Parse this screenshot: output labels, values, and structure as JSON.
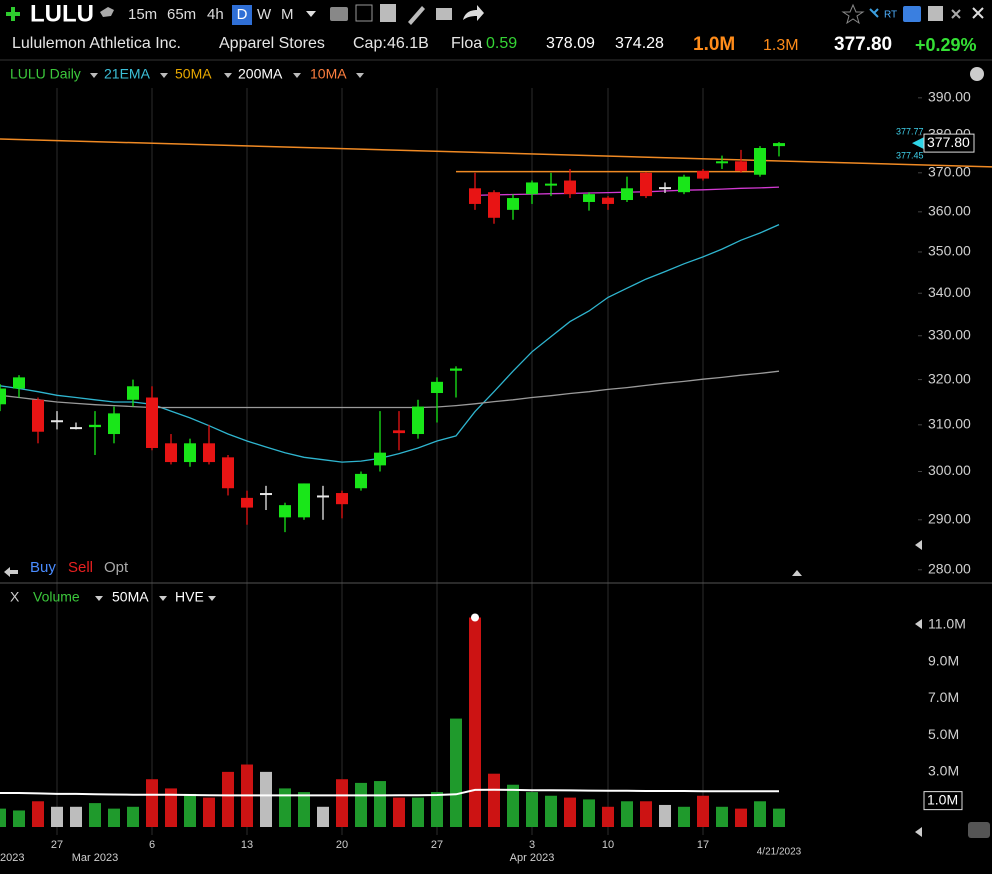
{
  "header": {
    "symbol": "LULU",
    "intervals": [
      "15m",
      "65m",
      "4h",
      "D",
      "W",
      "M"
    ],
    "rt": "RT",
    "company": "Lululemon Athletica Inc.",
    "industry": "Apparel Stores",
    "cap_label": "Cap:",
    "cap": "46.1B",
    "float_label": "Floa",
    "float": "0.59",
    "high": "378.09",
    "low": "374.28",
    "volume": "1.0M",
    "avg_volume": "1.3M",
    "last": "377.80",
    "change": "+0.29%"
  },
  "chart_data": [
    {
      "type": "candlestick",
      "title": "LULU Daily",
      "log_scale": true,
      "grid": "x",
      "up_color": "#19e619",
      "down_color": "#e81414",
      "flat_color": "#e8e8e8",
      "x": [
        "2023-02-22",
        "2023-02-23",
        "2023-02-24",
        "2023-02-27",
        "2023-02-28",
        "2023-03-01",
        "2023-03-02",
        "2023-03-03",
        "2023-03-06",
        "2023-03-07",
        "2023-03-08",
        "2023-03-09",
        "2023-03-10",
        "2023-03-13",
        "2023-03-14",
        "2023-03-15",
        "2023-03-16",
        "2023-03-17",
        "2023-03-20",
        "2023-03-21",
        "2023-03-22",
        "2023-03-23",
        "2023-03-24",
        "2023-03-27",
        "2023-03-28",
        "2023-03-29",
        "2023-03-30",
        "2023-03-31",
        "2023-04-03",
        "2023-04-04",
        "2023-04-05",
        "2023-04-06",
        "2023-04-10",
        "2023-04-11",
        "2023-04-12",
        "2023-04-13",
        "2023-04-14",
        "2023-04-17",
        "2023-04-18",
        "2023-04-19",
        "2023-04-20",
        "2023-04-21"
      ],
      "open": [
        314.5,
        318,
        315.5,
        311,
        309.5,
        309.5,
        308,
        315.5,
        316,
        306,
        302,
        306,
        303,
        294.5,
        295.5,
        290.5,
        290.5,
        295,
        295.5,
        296.5,
        301.3,
        308.8,
        308,
        317,
        322,
        366,
        365,
        360.5,
        364.5,
        366.8,
        368,
        362.5,
        363.6,
        363,
        370,
        366.3,
        365,
        370.5,
        372.5,
        373,
        369.5,
        377
      ],
      "high": [
        319,
        321,
        316,
        313,
        310.5,
        313,
        314,
        320,
        318.5,
        308,
        307,
        310,
        303.5,
        296,
        297,
        293.5,
        297.5,
        297,
        296,
        300,
        313,
        313,
        315.5,
        320.5,
        323,
        370,
        365.5,
        364.5,
        368,
        370,
        371,
        365,
        364,
        369,
        370.2,
        367.5,
        369.5,
        371,
        374.5,
        376,
        377,
        378.09
      ],
      "low": [
        313,
        316,
        306,
        309,
        309,
        303.5,
        306,
        314,
        304.5,
        301.5,
        301,
        301.5,
        295,
        289,
        292,
        287.5,
        290,
        290,
        290.3,
        296,
        300,
        304.5,
        307,
        310.5,
        316,
        360.5,
        357,
        358,
        362,
        364,
        363.5,
        360.3,
        360.5,
        362.5,
        363.5,
        364.8,
        364.5,
        368,
        371,
        370,
        369,
        374.28
      ],
      "close": [
        318,
        320.5,
        308.5,
        311,
        309.5,
        310,
        312.5,
        318.5,
        305,
        302,
        306,
        302,
        296.5,
        292.5,
        295.5,
        293,
        297.5,
        295,
        293.2,
        299.5,
        304,
        308.2,
        314,
        319.5,
        322.5,
        362,
        358.5,
        363.5,
        367.5,
        367.2,
        364.5,
        364.5,
        362,
        366,
        364,
        366.3,
        369,
        368.5,
        373,
        370.5,
        376.5,
        377.8
      ],
      "series": [
        {
          "name": "21EMA",
          "legend_color": "#3cc0d8",
          "color": "#2fb5cf",
          "values": [
            318.6,
            318,
            317.3,
            316.5,
            316,
            315.5,
            315,
            315,
            314.5,
            313,
            311.5,
            309.8,
            308,
            306.5,
            305.2,
            304,
            303,
            302.5,
            302,
            302.2,
            302.8,
            303.8,
            305,
            306.5,
            307.6,
            312.9,
            317.3,
            321.9,
            326.3,
            329.8,
            333.3,
            335.8,
            339,
            341.2,
            343.4,
            345.2,
            347.1,
            348.8,
            350.7,
            352.9,
            354.7,
            356.8
          ]
        },
        {
          "name": "50MA",
          "legend_color": "#e8a800",
          "color": "#e8a800"
        },
        {
          "name": "200MA",
          "legend_color": "#ffffff",
          "color": "#9a9a9a",
          "values": [
            316.5,
            316,
            315.5,
            315,
            314.7,
            314.4,
            314.2,
            314,
            313.8,
            313.8,
            313.8,
            313.8,
            313.8,
            313.8,
            313.8,
            313.8,
            313.8,
            313.8,
            313.8,
            313.8,
            313.8,
            313.8,
            313.8,
            313.9,
            314.2,
            314.6,
            315.1,
            315.5,
            316,
            316.4,
            316.9,
            317.3,
            317.8,
            318.2,
            318.7,
            319.2,
            319.6,
            320.1,
            320.5,
            321,
            321.4,
            321.9
          ]
        },
        {
          "name": "10MA",
          "legend_color": "#ff7f3f",
          "color": "#d23ad2",
          "values": [
            null,
            null,
            null,
            null,
            null,
            null,
            null,
            null,
            null,
            null,
            null,
            null,
            null,
            null,
            null,
            null,
            null,
            null,
            null,
            null,
            null,
            null,
            null,
            null,
            null,
            364.2,
            364.3,
            364.4,
            364.5,
            364.6,
            364.7,
            364.8,
            364.9,
            365,
            365.1,
            365.3,
            365.5,
            365.6,
            365.8,
            366,
            366.1,
            366.3
          ]
        }
      ],
      "trendlines": [
        {
          "color": "#f08a24",
          "extend": true,
          "points": [
            [
              "2023-02-22",
              378.9
            ],
            [
              "2023-04-21",
              373.1
            ]
          ]
        },
        {
          "color": "#f08a24",
          "extend": false,
          "points": [
            [
              "2023-03-28",
              370.3
            ],
            [
              "2023-04-20",
              370.3
            ]
          ]
        }
      ],
      "price_markers": [
        "377.77",
        "377.45"
      ],
      "ylim": [
        278,
        392.7
      ],
      "yticks": [
        {
          "value": 390,
          "label": "390.00"
        },
        {
          "value": 380,
          "label": "380.00"
        },
        {
          "value": 370,
          "label": "370.00"
        },
        {
          "value": 360,
          "label": "360.00"
        },
        {
          "value": 350,
          "label": "350.00"
        },
        {
          "value": 340,
          "label": "340.00"
        },
        {
          "value": 330,
          "label": "330.00"
        },
        {
          "value": 320,
          "label": "320.00"
        },
        {
          "value": 310,
          "label": "310.00"
        },
        {
          "value": 300,
          "label": "300.00"
        },
        {
          "value": 290,
          "label": "290.00"
        },
        {
          "value": 280,
          "label": "280.00"
        }
      ],
      "xticks": [
        {
          "value": "2023-02-27",
          "label": "27"
        },
        {
          "value": "2023-03-06",
          "label": "6"
        },
        {
          "value": "2023-03-13",
          "label": "13"
        },
        {
          "value": "2023-03-20",
          "label": "20"
        },
        {
          "value": "2023-03-27",
          "label": "27"
        },
        {
          "value": "2023-04-03",
          "label": "3"
        },
        {
          "value": "2023-04-10",
          "label": "10"
        },
        {
          "value": "2023-04-17",
          "label": "17"
        }
      ],
      "xticks_major": [
        {
          "value": "2023-02-22",
          "label": "2023"
        },
        {
          "value": "2023-03-01",
          "label": "Mar 2023"
        },
        {
          "value": "2023-04-03",
          "label": "Apr 2023"
        }
      ],
      "cursor_label": {
        "value": "2023-04-21",
        "label": "4/21/2023"
      },
      "trade_buttons": [
        "Buy",
        "Sell",
        "Opt"
      ]
    },
    {
      "type": "bar",
      "title": "Volume",
      "close_button": "X",
      "extras": [
        "HVE"
      ],
      "values": [
        1.0,
        0.9,
        1.4,
        1.1,
        1.1,
        1.3,
        1.0,
        1.1,
        2.6,
        2.1,
        1.8,
        1.6,
        3.0,
        3.4,
        3.0,
        2.1,
        1.9,
        1.1,
        2.6,
        2.4,
        2.5,
        1.6,
        1.6,
        1.9,
        5.9,
        11.4,
        2.9,
        2.3,
        1.9,
        1.7,
        1.6,
        1.5,
        1.1,
        1.4,
        1.4,
        1.2,
        1.1,
        1.7,
        1.1,
        1.0,
        1.4,
        1.0
      ],
      "up_color": "#1f9a2c",
      "down_color": "#cc1313",
      "flat_color": "#bdbdbd",
      "series": [
        {
          "name": "50MA",
          "color": "#ffffff",
          "values": [
            1.85,
            1.85,
            1.83,
            1.8,
            1.8,
            1.78,
            1.77,
            1.76,
            1.75,
            1.75,
            1.74,
            1.73,
            1.72,
            1.72,
            1.72,
            1.72,
            1.72,
            1.72,
            1.72,
            1.72,
            1.72,
            1.73,
            1.73,
            1.74,
            1.78,
            2.02,
            2.03,
            2.02,
            2.0,
            2.0,
            1.99,
            1.98,
            1.97,
            1.97,
            1.96,
            1.96,
            1.96,
            1.95,
            1.95,
            1.95,
            1.95,
            1.95
          ]
        }
      ],
      "ylim": [
        0,
        11.7
      ],
      "yticks": [
        {
          "value": 11,
          "label": "11.0M"
        },
        {
          "value": 9,
          "label": "9.0M"
        },
        {
          "value": 7,
          "label": "7.0M"
        },
        {
          "value": 5,
          "label": "5.0M"
        },
        {
          "value": 3,
          "label": "3.0M"
        }
      ]
    }
  ]
}
